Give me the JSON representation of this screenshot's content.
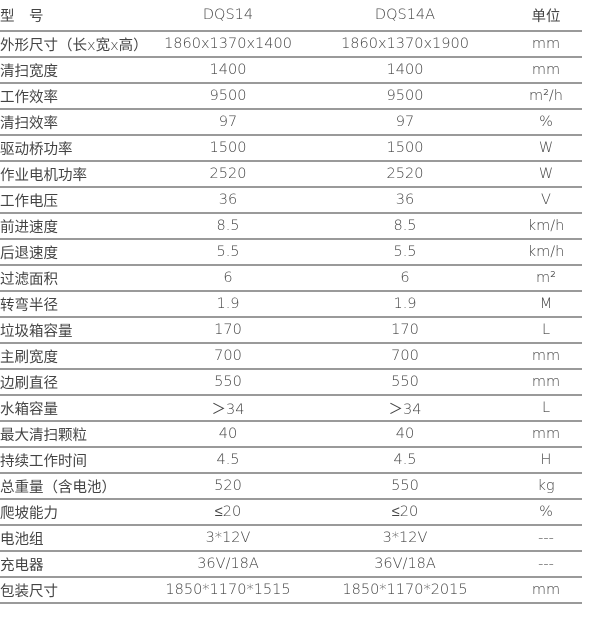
{
  "header": [
    "型　号",
    "DQS14",
    "DQS14A",
    "单位"
  ],
  "rows": [
    [
      "外形尺寸（长x宽x高）",
      "1860x1370x1400",
      "1860x1370x1900",
      "mm"
    ],
    [
      "清扫宽度",
      "1400",
      "1400",
      "mm"
    ],
    [
      "工作效率",
      "9500",
      "9500",
      "m²/h"
    ],
    [
      "清扫效率",
      "97",
      "97",
      "%"
    ],
    [
      "驱动桥功率",
      "1500",
      "1500",
      "W"
    ],
    [
      "作业电机功率",
      "2520",
      "2520",
      "W"
    ],
    [
      "工作电压",
      "36",
      "36",
      "V"
    ],
    [
      "前进速度",
      "8.5",
      "8.5",
      "km/h"
    ],
    [
      "后退速度",
      "5.5",
      "5.5",
      "km/h"
    ],
    [
      "过滤面积",
      "6",
      "6",
      "m²"
    ],
    [
      "转弯半径",
      "1.9",
      "1.9",
      "M"
    ],
    [
      "垃圾箱容量",
      "170",
      "170",
      "L"
    ],
    [
      "主刷宽度",
      "700",
      "700",
      "mm"
    ],
    [
      "边刷直径",
      "550",
      "550",
      "mm"
    ],
    [
      "水箱容量",
      "＞34",
      "＞34",
      "L"
    ],
    [
      "最大清扫颗粒",
      "40",
      "40",
      "mm"
    ],
    [
      "持续工作时间",
      "4.5",
      "4.5",
      "H"
    ],
    [
      "总重量（含电池）",
      "520",
      "550",
      "kg"
    ],
    [
      "爬坡能力",
      "≤20",
      "≤20",
      "%"
    ],
    [
      "电池组",
      "3*12V",
      "3*12V",
      "---"
    ],
    [
      "充电器",
      "36V/18A",
      "36V/18A",
      "---"
    ],
    [
      "包装尺寸",
      "1850*1170*1515",
      "1850*1170*2015",
      "mm"
    ]
  ]
}
